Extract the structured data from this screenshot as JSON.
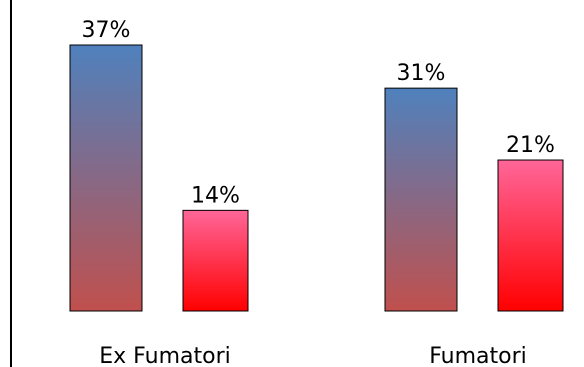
{
  "chart_data": {
    "type": "bar",
    "categories": [
      "Ex Fumatori",
      "Fumatori"
    ],
    "series": [
      {
        "values": [
          37,
          31
        ],
        "labels": [
          "37%",
          "31%"
        ],
        "gradient": [
          "#4f81bd",
          "#c0504d"
        ]
      },
      {
        "values": [
          14,
          21
        ],
        "labels": [
          "14%",
          "21%"
        ],
        "gradient": [
          "#ff6699",
          "#ff0000"
        ]
      }
    ],
    "title": "",
    "xlabel": "",
    "ylabel": "",
    "ylim": [
      0,
      37
    ],
    "grid": false,
    "legend": "none",
    "colors": {
      "bar_border": "#000000",
      "axis": "#000000"
    }
  }
}
